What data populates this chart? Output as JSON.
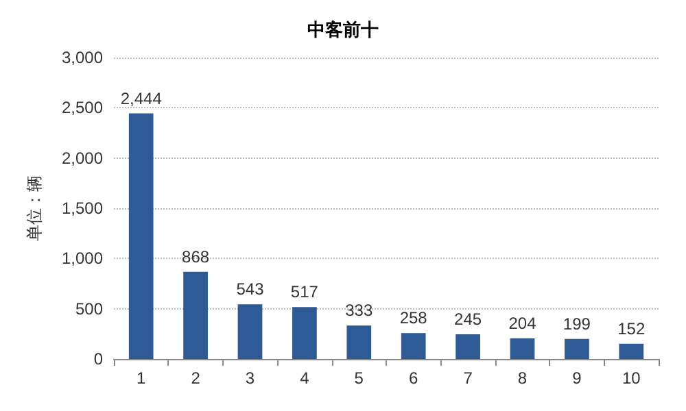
{
  "chart_data": {
    "type": "bar",
    "title": "中客前十",
    "ylabel": "单位：辆",
    "categories": [
      "1",
      "2",
      "3",
      "4",
      "5",
      "6",
      "7",
      "8",
      "9",
      "10"
    ],
    "values": [
      2444,
      868,
      543,
      517,
      333,
      258,
      245,
      204,
      199,
      152
    ],
    "value_labels": [
      "2,444",
      "868",
      "543",
      "517",
      "333",
      "258",
      "245",
      "204",
      "199",
      "152"
    ],
    "color": "#2e5b95",
    "ylim": [
      0,
      3000
    ],
    "yticks": [
      0,
      500,
      {
        "value": 1000,
        "label": "1,000"
      },
      {
        "value": 1500,
        "label": "1,500"
      },
      {
        "value": 2000,
        "label": "2,000"
      },
      {
        "value": 2500,
        "label": "2,500"
      },
      {
        "value": 3000,
        "label": "3,000"
      }
    ],
    "grid": "y"
  }
}
